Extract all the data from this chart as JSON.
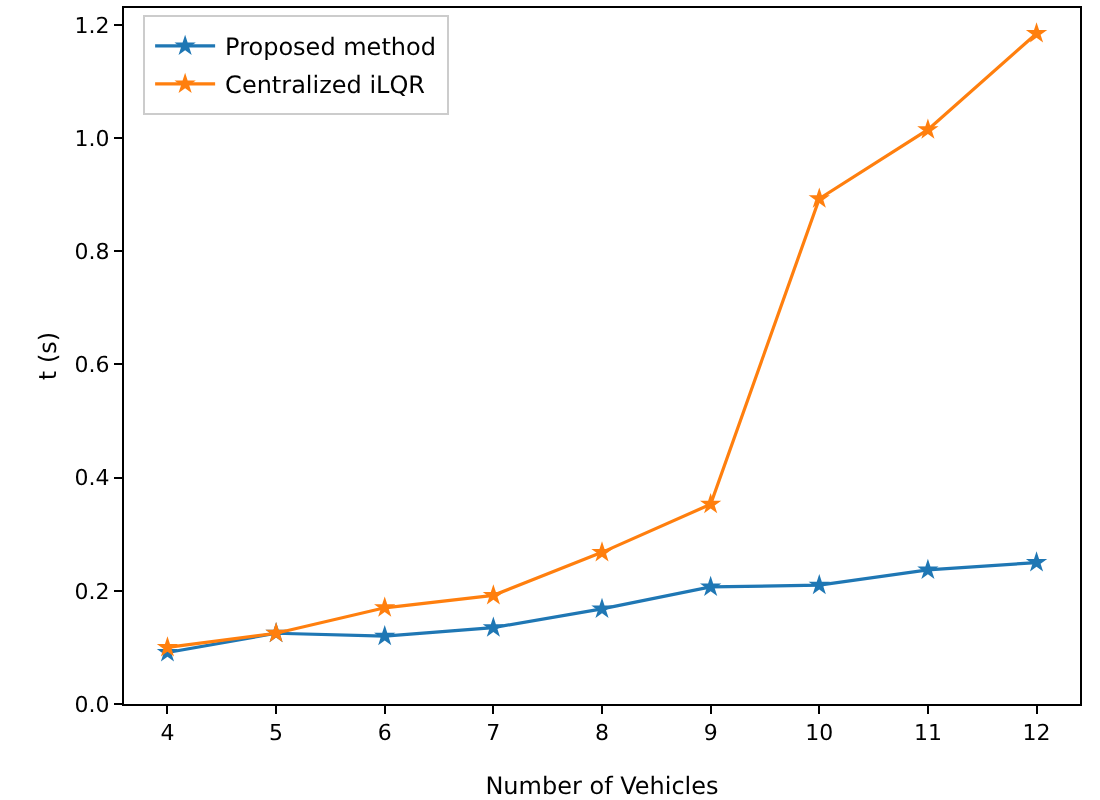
{
  "chart_data": {
    "type": "line",
    "xlabel": "Number of Vehicles",
    "ylabel": "t (s)",
    "x": [
      4,
      5,
      6,
      7,
      8,
      9,
      10,
      11,
      12
    ],
    "series": [
      {
        "name": "Proposed method",
        "color": "#1f77b4",
        "values": [
          0.091,
          0.125,
          0.12,
          0.135,
          0.168,
          0.207,
          0.21,
          0.237,
          0.25
        ]
      },
      {
        "name": "Centralized iLQR",
        "color": "#ff7f0e",
        "values": [
          0.1,
          0.125,
          0.17,
          0.192,
          0.268,
          0.353,
          0.893,
          1.015,
          1.185
        ]
      }
    ],
    "xlim": [
      3.6,
      12.4
    ],
    "xticks": [
      4,
      5,
      6,
      7,
      8,
      9,
      10,
      11,
      12
    ],
    "ylim": [
      0,
      1.23
    ],
    "yticks": [
      {
        "value": 0,
        "label": "0.0"
      },
      0.2,
      0.4,
      0.6,
      0.8,
      {
        "value": 1,
        "label": "1.0"
      },
      1.2
    ],
    "grid": false,
    "legend": "top left",
    "marker": "star",
    "line_style": "solid"
  }
}
